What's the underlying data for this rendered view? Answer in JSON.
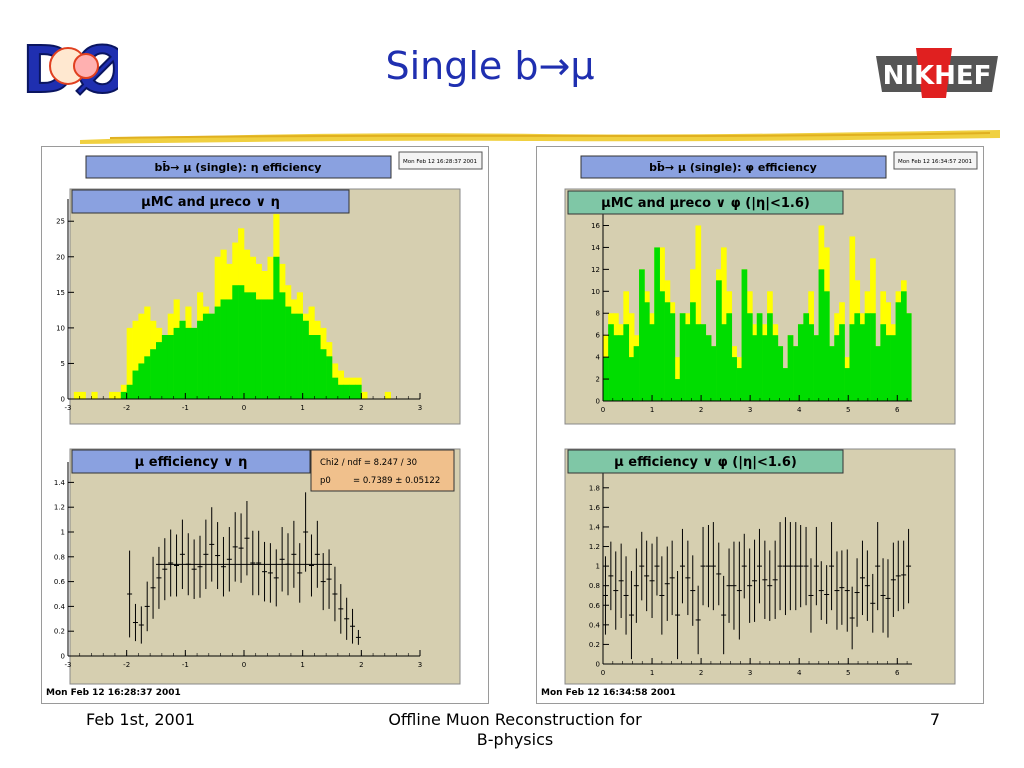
{
  "slide": {
    "title": "Single b→μ",
    "footer_date": "Feb 1st, 2001",
    "footer_title_line1": "Offline Muon Reconstruction for",
    "footer_title_line2": "B-physics",
    "page_number": "7"
  },
  "logos": {
    "left": "DØ",
    "right": "NIKHEF"
  },
  "colors": {
    "title": "#1f2fb0",
    "plot_bg": "#d6cfb0",
    "reco_fill": "#00dd00",
    "mc_fill": "#ffff00",
    "title_box": "#8aa1e0",
    "title_box_green": "#7fc7a6",
    "stats_box": "#f0c08c"
  },
  "canvases": [
    {
      "header": "bb̄→ μ (single): η efficiency",
      "header_date": "Mon Feb 12 16:28:37 2001",
      "footer_date": "Mon Feb 12 16:28:37 2001"
    },
    {
      "header": "bb̄→ μ (single): φ efficiency",
      "header_date": "Mon Feb 12 16:34:57 2001",
      "footer_date": "Mon Feb 12 16:34:58 2001"
    }
  ],
  "chart_data": [
    {
      "type": "bar",
      "title": "μMC and μreco ∨ η",
      "x": [
        -2.95,
        -2.85,
        -2.75,
        -2.65,
        -2.55,
        -2.45,
        -2.35,
        -2.25,
        -2.15,
        -2.05,
        -1.95,
        -1.85,
        -1.75,
        -1.65,
        -1.55,
        -1.45,
        -1.35,
        -1.25,
        -1.15,
        -1.05,
        -0.95,
        -0.85,
        -0.75,
        -0.65,
        -0.55,
        -0.45,
        -0.35,
        -0.25,
        -0.15,
        -0.05,
        0.05,
        0.15,
        0.25,
        0.35,
        0.45,
        0.55,
        0.65,
        0.75,
        0.85,
        0.95,
        1.05,
        1.15,
        1.25,
        1.35,
        1.45,
        1.55,
        1.65,
        1.75,
        1.85,
        1.95,
        2.05,
        2.15,
        2.25,
        2.35,
        2.45,
        2.55,
        2.65,
        2.75,
        2.85,
        2.95
      ],
      "series": [
        {
          "values": [
            0,
            1,
            1,
            0,
            1,
            0,
            0,
            1,
            1,
            2,
            10,
            11,
            12,
            13,
            11,
            10,
            9,
            12,
            14,
            11,
            13,
            10,
            15,
            13,
            12,
            20,
            21,
            19,
            22,
            24,
            21,
            20,
            19,
            18,
            20,
            26,
            19,
            16,
            14,
            15,
            12,
            13,
            11,
            10,
            8,
            5,
            4,
            3,
            3,
            3,
            1,
            0,
            0,
            0,
            1,
            0,
            0,
            0,
            0,
            0
          ]
        },
        {
          "values": [
            0,
            0,
            0,
            0,
            0,
            0,
            0,
            0,
            0,
            1,
            2,
            4,
            5,
            6,
            7,
            8,
            9,
            9,
            10,
            11,
            10,
            10,
            11,
            12,
            12,
            13,
            14,
            14,
            16,
            16,
            15,
            15,
            14,
            14,
            14,
            20,
            15,
            13,
            12,
            12,
            11,
            9,
            9,
            7,
            6,
            3,
            2,
            2,
            2,
            2,
            0,
            0,
            0,
            0,
            0,
            0,
            0,
            0,
            0,
            0
          ]
        }
      ],
      "xlim": [
        -3,
        3
      ],
      "ylim": [
        0,
        27
      ],
      "x_ticks": [
        "-3",
        "-2",
        "-1",
        "0",
        "1",
        "2",
        "3"
      ],
      "y_ticks": [
        "0",
        "5",
        "10",
        "15",
        "20",
        "25"
      ]
    },
    {
      "type": "scatter",
      "title": "μ efficiency ∨ η",
      "x": [
        -1.95,
        -1.85,
        -1.75,
        -1.65,
        -1.55,
        -1.45,
        -1.35,
        -1.25,
        -1.15,
        -1.05,
        -0.95,
        -0.85,
        -0.75,
        -0.65,
        -0.55,
        -0.45,
        -0.35,
        -0.25,
        -0.15,
        -0.05,
        0.05,
        0.15,
        0.25,
        0.35,
        0.45,
        0.55,
        0.65,
        0.75,
        0.85,
        0.95,
        1.05,
        1.15,
        1.25,
        1.35,
        1.45,
        1.55,
        1.65,
        1.75,
        1.85,
        1.95
      ],
      "y": [
        0.5,
        0.27,
        0.25,
        0.4,
        0.55,
        0.63,
        0.7,
        0.75,
        0.73,
        0.82,
        0.74,
        0.7,
        0.72,
        0.82,
        0.9,
        0.81,
        0.72,
        0.78,
        0.88,
        0.87,
        0.95,
        0.75,
        0.75,
        0.68,
        0.67,
        0.63,
        0.78,
        0.74,
        0.82,
        0.67,
        1.0,
        0.73,
        0.82,
        0.6,
        0.62,
        0.5,
        0.38,
        0.3,
        0.24,
        0.15
      ],
      "yerr": [
        0.35,
        0.15,
        0.15,
        0.2,
        0.25,
        0.25,
        0.25,
        0.27,
        0.25,
        0.28,
        0.25,
        0.24,
        0.25,
        0.28,
        0.3,
        0.27,
        0.24,
        0.26,
        0.28,
        0.28,
        0.3,
        0.26,
        0.26,
        0.24,
        0.24,
        0.23,
        0.26,
        0.25,
        0.27,
        0.24,
        0.32,
        0.25,
        0.27,
        0.23,
        0.24,
        0.22,
        0.2,
        0.17,
        0.14,
        0.06
      ],
      "fit": {
        "p0": 0.7389,
        "xrange": [
          -1.5,
          1.5
        ]
      },
      "stats": {
        "line1_label": "Chi2 / ndf = 8.247  / 30",
        "line2_label": "p0",
        "line2_value": "= 0.7389  ± 0.05122"
      },
      "xlim": [
        -3,
        3
      ],
      "ylim": [
        0,
        1.5
      ],
      "x_ticks": [
        "-3",
        "-2",
        "-1",
        "0",
        "1",
        "2",
        "3"
      ],
      "y_ticks": [
        "0",
        "0.2",
        "0.4",
        "0.6",
        "0.8",
        "1",
        "1.2",
        "1.4"
      ]
    },
    {
      "type": "bar",
      "title": "μMC and μreco ∨ φ (|η|<1.6)",
      "x": [
        0.05,
        0.16,
        0.26,
        0.37,
        0.47,
        0.58,
        0.68,
        0.79,
        0.89,
        1.0,
        1.1,
        1.2,
        1.31,
        1.41,
        1.52,
        1.62,
        1.73,
        1.83,
        1.94,
        2.04,
        2.15,
        2.25,
        2.36,
        2.46,
        2.57,
        2.67,
        2.78,
        2.88,
        2.99,
        3.09,
        3.19,
        3.3,
        3.4,
        3.51,
        3.61,
        3.72,
        3.82,
        3.93,
        4.03,
        4.14,
        4.24,
        4.35,
        4.45,
        4.56,
        4.66,
        4.77,
        4.87,
        4.98,
        5.08,
        5.18,
        5.29,
        5.39,
        5.5,
        5.6,
        5.71,
        5.81,
        5.92,
        6.02,
        6.13,
        6.23
      ],
      "series": [
        {
          "values": [
            6,
            8,
            8,
            7,
            10,
            8,
            6,
            12,
            10,
            8,
            14,
            14,
            11,
            9,
            4,
            8,
            8,
            12,
            16,
            7,
            6,
            5,
            12,
            14,
            10,
            5,
            4,
            12,
            10,
            7,
            8,
            7,
            10,
            7,
            5,
            3,
            6,
            5,
            7,
            8,
            10,
            6,
            16,
            14,
            5,
            8,
            9,
            4,
            15,
            11,
            8,
            10,
            13,
            5,
            10,
            9,
            7,
            10,
            11,
            8
          ]
        },
        {
          "values": [
            4,
            7,
            6,
            6,
            7,
            4,
            5,
            12,
            9,
            7,
            14,
            10,
            9,
            8,
            2,
            8,
            7,
            9,
            7,
            7,
            6,
            5,
            11,
            7,
            8,
            4,
            3,
            12,
            8,
            6,
            8,
            6,
            8,
            6,
            5,
            3,
            6,
            5,
            7,
            8,
            7,
            6,
            12,
            10,
            5,
            6,
            7,
            3,
            7,
            8,
            7,
            8,
            8,
            5,
            7,
            6,
            6,
            9,
            10,
            8
          ]
        }
      ],
      "xlim": [
        0,
        6.3
      ],
      "ylim": [
        0,
        16.5
      ],
      "x_ticks": [
        "0",
        "1",
        "2",
        "3",
        "4",
        "5",
        "6"
      ],
      "y_ticks": [
        "0",
        "2",
        "4",
        "6",
        "8",
        "10",
        "12",
        "14",
        "16"
      ]
    },
    {
      "type": "scatter",
      "title": "μ efficiency ∨ φ (|η|<1.6)",
      "x": [
        0.05,
        0.16,
        0.26,
        0.37,
        0.47,
        0.58,
        0.68,
        0.79,
        0.89,
        1.0,
        1.1,
        1.2,
        1.31,
        1.41,
        1.52,
        1.62,
        1.73,
        1.83,
        1.94,
        2.04,
        2.15,
        2.25,
        2.36,
        2.46,
        2.57,
        2.67,
        2.78,
        2.88,
        2.99,
        3.09,
        3.19,
        3.3,
        3.4,
        3.51,
        3.61,
        3.72,
        3.82,
        3.93,
        4.03,
        4.14,
        4.24,
        4.35,
        4.45,
        4.56,
        4.66,
        4.77,
        4.87,
        4.98,
        5.08,
        5.18,
        5.29,
        5.39,
        5.5,
        5.6,
        5.71,
        5.81,
        5.92,
        6.02,
        6.13,
        6.23
      ],
      "y": [
        0.7,
        0.9,
        0.75,
        0.85,
        0.7,
        0.5,
        0.8,
        1.0,
        0.9,
        0.85,
        1.0,
        0.7,
        0.82,
        0.88,
        0.5,
        1.0,
        0.88,
        0.75,
        0.45,
        1.0,
        1.0,
        1.0,
        0.92,
        0.5,
        0.8,
        0.8,
        0.75,
        1.0,
        0.8,
        0.85,
        1.0,
        0.86,
        0.8,
        0.86,
        1.0,
        1.0,
        1.0,
        1.0,
        1.0,
        1.0,
        0.7,
        1.0,
        0.75,
        0.71,
        1.0,
        0.75,
        0.78,
        0.75,
        0.47,
        0.73,
        0.88,
        0.8,
        0.62,
        1.0,
        0.7,
        0.67,
        0.86,
        0.9,
        0.91,
        1.0
      ],
      "yerr": [
        0.4,
        0.35,
        0.4,
        0.38,
        0.4,
        0.45,
        0.38,
        0.35,
        0.36,
        0.38,
        0.3,
        0.4,
        0.38,
        0.38,
        0.45,
        0.38,
        0.38,
        0.36,
        0.35,
        0.4,
        0.42,
        0.45,
        0.32,
        0.4,
        0.38,
        0.45,
        0.5,
        0.33,
        0.38,
        0.42,
        0.38,
        0.4,
        0.36,
        0.4,
        0.45,
        0.5,
        0.45,
        0.45,
        0.42,
        0.4,
        0.38,
        0.4,
        0.3,
        0.3,
        0.45,
        0.4,
        0.38,
        0.42,
        0.32,
        0.35,
        0.38,
        0.36,
        0.3,
        0.45,
        0.38,
        0.4,
        0.38,
        0.36,
        0.35,
        0.38
      ],
      "xlim": [
        0,
        6.3
      ],
      "ylim": [
        0,
        1.9
      ],
      "x_ticks": [
        "0",
        "1",
        "2",
        "3",
        "4",
        "5",
        "6"
      ],
      "y_ticks": [
        "0",
        "0.2",
        "0.4",
        "0.6",
        "0.8",
        "1",
        "1.2",
        "1.4",
        "1.6",
        "1.8"
      ]
    }
  ]
}
